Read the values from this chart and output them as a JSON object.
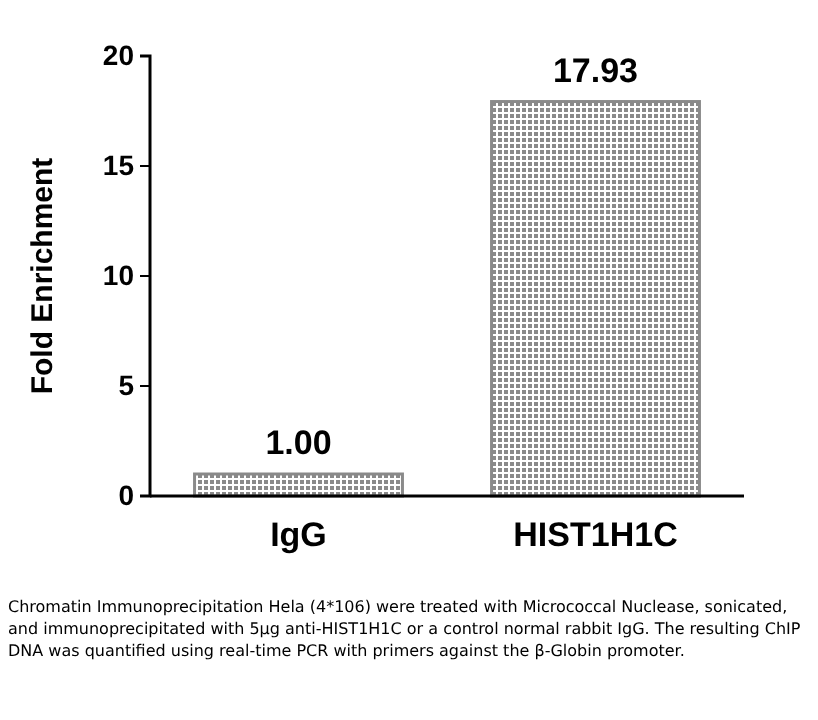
{
  "chart_data": {
    "type": "bar",
    "ylabel": "Fold Enrichment",
    "categories": [
      "IgG",
      "HIST1H1C"
    ],
    "values": [
      1.0,
      17.93
    ],
    "value_labels": [
      "1.00",
      "17.93"
    ],
    "color": "#8a8a8a",
    "ylim": [
      0,
      20
    ],
    "yticks": [
      0,
      5,
      10,
      15,
      20
    ],
    "grid": false,
    "annotations": [
      "Chromatin Immunoprecipitation Hela (4*106) were treated with Micrococcal Nuclease, sonicated, and immunoprecipitated with 5μg anti-HIST1H1C or a control normal rabbit IgG. The resulting ChIP DNA was quantified using real-time PCR with primers against the β-Globin promoter."
    ]
  }
}
